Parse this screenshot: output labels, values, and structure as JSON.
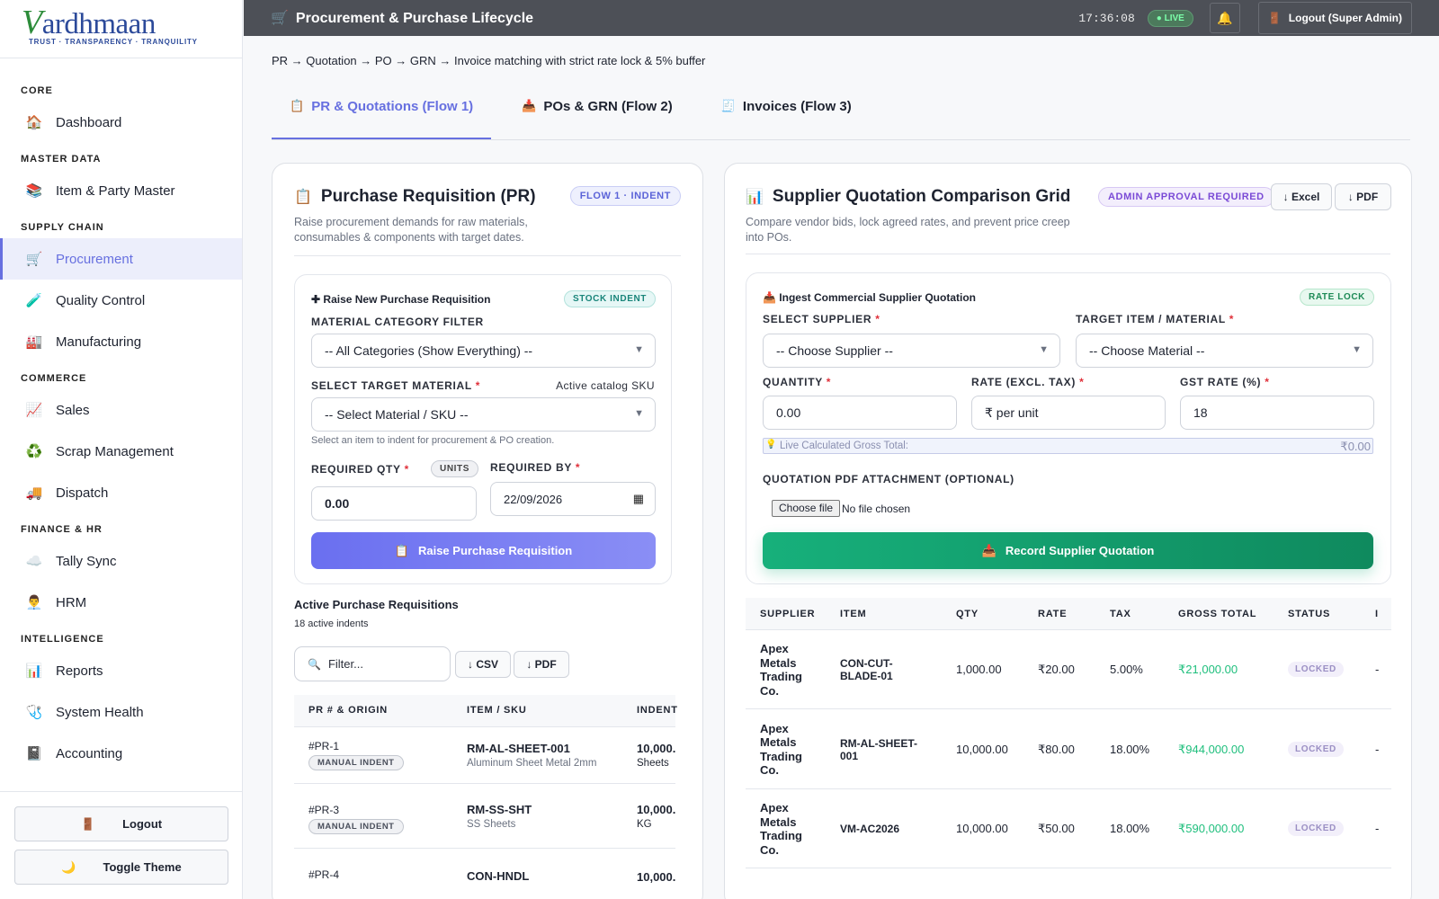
{
  "brand": {
    "name_first": "V",
    "name_rest": "ardhmaan",
    "tagline": "TRUST · TRANSPARENCY · TRANQUILITY"
  },
  "sidebar": {
    "sections": [
      {
        "label": "CORE",
        "items": [
          {
            "label": "Dashboard",
            "icon": "home-icon"
          }
        ]
      },
      {
        "label": "MASTER DATA",
        "items": [
          {
            "label": "Item & Party Master",
            "icon": "books-icon"
          }
        ]
      },
      {
        "label": "SUPPLY CHAIN",
        "items": [
          {
            "label": "Procurement",
            "icon": "cart-icon"
          },
          {
            "label": "Quality Control",
            "icon": "test-tube-icon"
          },
          {
            "label": "Manufacturing",
            "icon": "factory-icon"
          }
        ]
      },
      {
        "label": "COMMERCE",
        "items": [
          {
            "label": "Sales",
            "icon": "chart-up-icon"
          },
          {
            "label": "Scrap Management",
            "icon": "recycle-icon"
          },
          {
            "label": "Dispatch",
            "icon": "truck-icon"
          }
        ]
      },
      {
        "label": "FINANCE & HR",
        "items": [
          {
            "label": "Tally Sync",
            "icon": "cloud-icon"
          },
          {
            "label": "HRM",
            "icon": "person-icon"
          }
        ]
      },
      {
        "label": "INTELLIGENCE",
        "items": [
          {
            "label": "Reports",
            "icon": "bar-chart-icon"
          },
          {
            "label": "System Health",
            "icon": "stethoscope-icon"
          },
          {
            "label": "Accounting",
            "icon": "ledger-icon"
          }
        ]
      }
    ],
    "active": "Procurement",
    "footer": {
      "logout": "Logout",
      "toggle_theme": "Toggle Theme"
    }
  },
  "topbar": {
    "title": "Procurement & Purchase Lifecycle",
    "clock": "17:36:08",
    "live": "LIVE",
    "logout": "Logout (Super Admin)"
  },
  "main": {
    "subtitle": "PR → Quotation → PO → GRN → Invoice matching with strict rate lock & 5% buffer",
    "tabs": [
      "PR & Quotations (Flow 1)",
      "POs & GRN (Flow 2)",
      "Invoices (Flow 3)"
    ]
  },
  "pr": {
    "title": "Purchase Requisition (PR)",
    "badge": "FLOW 1 · INDENT",
    "desc": "Raise procurement demands for raw materials, consumables & components with target dates.",
    "form": {
      "title": "Raise New Purchase Requisition",
      "badge": "STOCK INDENT",
      "category_label": "MATERIAL CATEGORY FILTER",
      "category_value": "-- All Categories (Show Everything) --",
      "material_label": "SELECT TARGET MATERIAL",
      "material_aside": "Active catalog SKU",
      "material_value": "-- Select Material / SKU --",
      "material_hint": "Select an item to indent for procurement & PO creation.",
      "qty_label": "REQUIRED QTY",
      "qty_unit": "UNITS",
      "qty_value": "0.00",
      "by_label": "REQUIRED BY",
      "by_value": "22/09/2026",
      "submit": "Raise Purchase Requisition"
    },
    "list": {
      "title": "Active Purchase Requisitions",
      "count": "18 active indents",
      "filter_placeholder": "Filter...",
      "csv": "↓ CSV",
      "pdf": "↓ PDF",
      "headers": [
        "PR # & ORIGIN",
        "ITEM / SKU",
        "INDENT"
      ],
      "rows": [
        {
          "id": "#PR-1",
          "origin": "MANUAL INDENT",
          "sku": "RM-AL-SHEET-001",
          "name": "Aluminum Sheet Metal 2mm",
          "qty": "10,000.",
          "unit": "Sheets"
        },
        {
          "id": "#PR-3",
          "origin": "MANUAL INDENT",
          "sku": "RM-SS-SHT",
          "name": "SS Sheets",
          "qty": "10,000.",
          "unit": "KG"
        },
        {
          "id": "#PR-4",
          "origin": "",
          "sku": "CON-HNDL",
          "name": "",
          "qty": "10,000.",
          "unit": ""
        }
      ]
    }
  },
  "sq": {
    "title": "Supplier Quotation Comparison Grid",
    "badge": "ADMIN APPROVAL REQUIRED",
    "excel": "↓ Excel",
    "pdf": "↓ PDF",
    "desc": "Compare vendor bids, lock agreed rates, and prevent price creep into POs.",
    "form": {
      "title": "Ingest Commercial Supplier Quotation",
      "badge": "RATE LOCK",
      "supplier_label": "SELECT SUPPLIER",
      "supplier_value": "-- Choose Supplier --",
      "item_label": "TARGET ITEM / MATERIAL",
      "item_value": "-- Choose Material --",
      "qty_label": "QUANTITY",
      "qty_value": "0.00",
      "rate_label": "RATE (EXCL. TAX)",
      "rate_placeholder": "₹ per unit",
      "gst_label": "GST RATE (%)",
      "gst_value": "18",
      "live_label": "Live Calculated Gross Total:",
      "live_value": "₹0.00",
      "attach_label": "QUOTATION PDF ATTACHMENT (OPTIONAL)",
      "choose_file": "Choose file",
      "no_file": "No file chosen",
      "submit": "Record Supplier Quotation"
    },
    "table": {
      "headers": [
        "SUPPLIER",
        "ITEM",
        "QTY",
        "RATE",
        "TAX",
        "GROSS TOTAL",
        "STATUS",
        "I"
      ],
      "rows": [
        {
          "supplier": [
            "Apex",
            "Metals",
            "Trading",
            "Co."
          ],
          "item": [
            "CON-CUT-",
            "BLADE-01"
          ],
          "qty": "1,000.00",
          "rate": "₹20.00",
          "tax": "5.00%",
          "gross": "₹21,000.00",
          "status": "LOCKED",
          "extra": "-"
        },
        {
          "supplier": [
            "Apex",
            "Metals",
            "Trading",
            "Co."
          ],
          "item": [
            "RM-AL-SHEET-",
            "001"
          ],
          "qty": "10,000.00",
          "rate": "₹80.00",
          "tax": "18.00%",
          "gross": "₹944,000.00",
          "status": "LOCKED",
          "extra": "-"
        },
        {
          "supplier": [
            "Apex",
            "Metals",
            "Trading",
            "Co."
          ],
          "item": [
            "VM-AC2026"
          ],
          "qty": "10,000.00",
          "rate": "₹50.00",
          "tax": "18.00%",
          "gross": "₹590,000.00",
          "status": "LOCKED",
          "extra": "-"
        }
      ]
    }
  }
}
